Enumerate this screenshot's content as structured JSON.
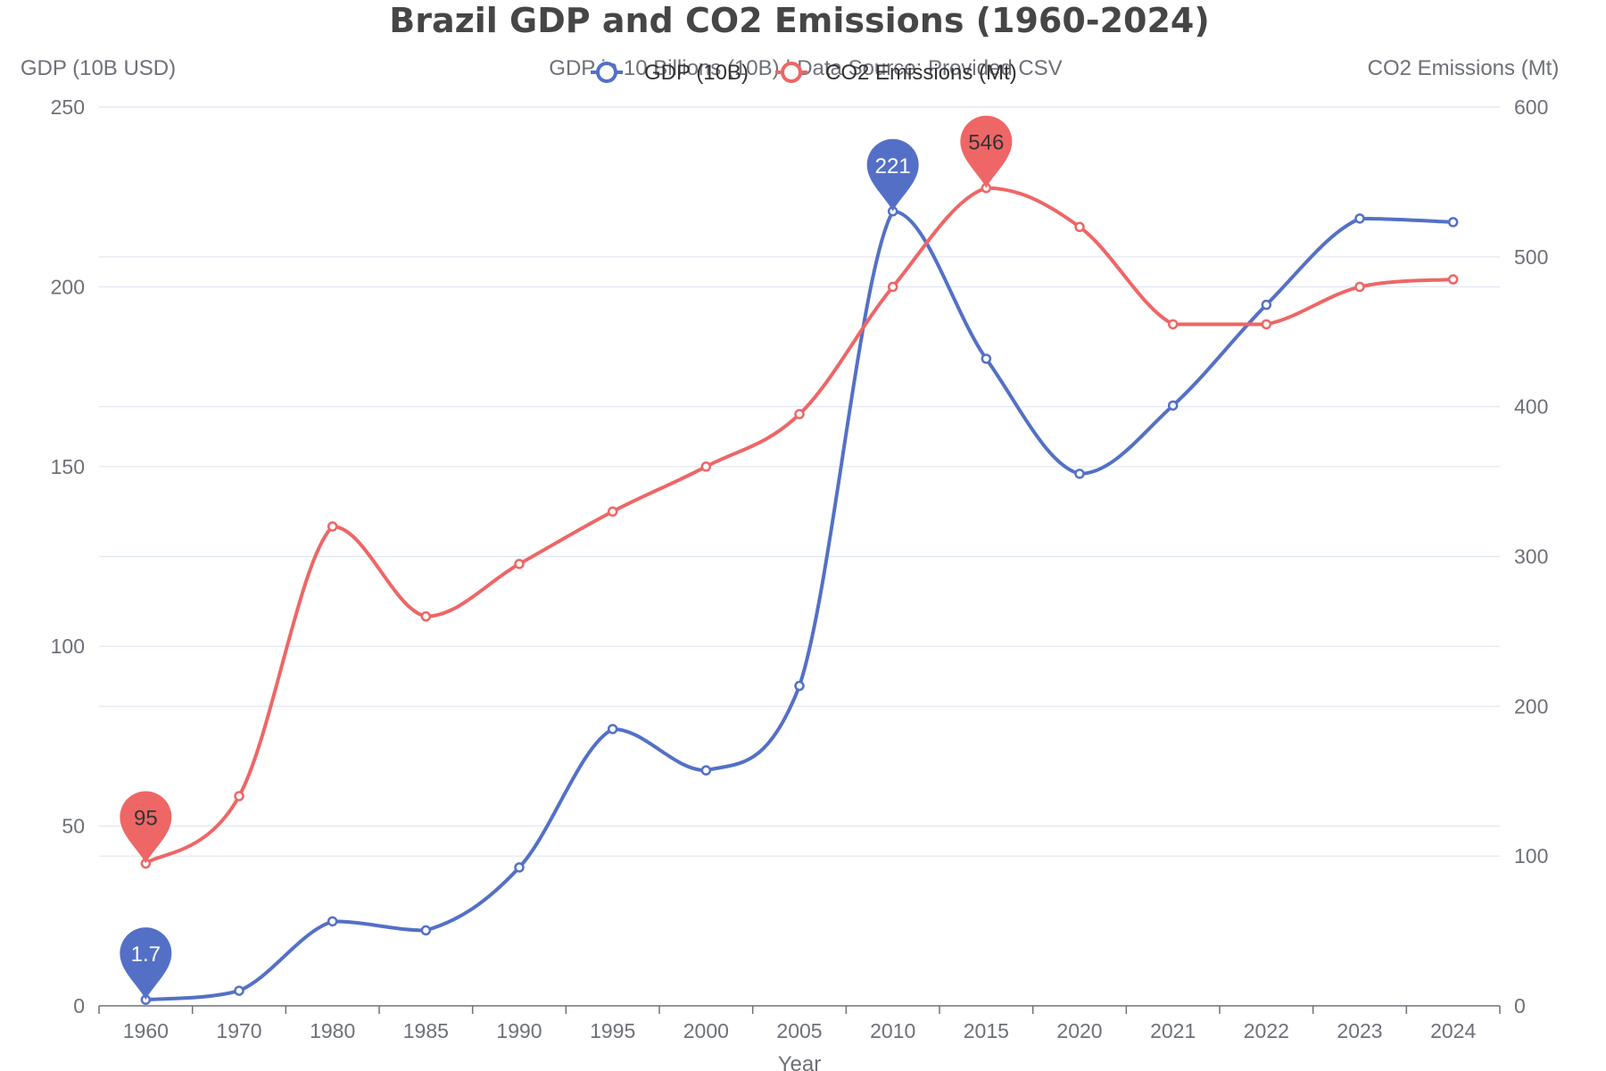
{
  "chart_data": {
    "type": "line",
    "title": "Brazil GDP and CO2 Emissions (1960-2024)",
    "subtitle": "GDP in 10 Billions (10B) | Data Source: Provided CSV",
    "xlabel": "Year",
    "ylabel_left": "GDP (10B USD)",
    "ylabel_right": "CO2 Emissions (Mt)",
    "categories": [
      "1960",
      "1970",
      "1980",
      "1985",
      "1990",
      "1995",
      "2000",
      "2005",
      "2010",
      "2015",
      "2020",
      "2021",
      "2022",
      "2023",
      "2024"
    ],
    "ylim_left": [
      0,
      250
    ],
    "yticks_left": [
      0,
      50,
      100,
      150,
      200,
      250
    ],
    "ylim_right": [
      0,
      600
    ],
    "yticks_right": [
      0,
      100,
      200,
      300,
      400,
      500,
      600
    ],
    "grid": true,
    "legend": "top-center",
    "series": [
      {
        "name": "GDP (10B)",
        "axis": "left",
        "color": "#5470c6",
        "values": [
          1.7,
          4.2,
          23.5,
          21,
          38.5,
          77,
          65.5,
          89,
          221,
          180,
          148,
          167,
          195,
          219,
          218
        ],
        "max_label": "221",
        "min_label": "1.7"
      },
      {
        "name": "CO2 Emissions (Mt)",
        "axis": "right",
        "color": "#ee6666",
        "values": [
          95,
          140,
          320,
          260,
          295,
          330,
          360,
          395,
          480,
          546,
          520,
          455,
          455,
          480,
          485
        ],
        "max_label": "546",
        "min_label": "95"
      }
    ]
  }
}
